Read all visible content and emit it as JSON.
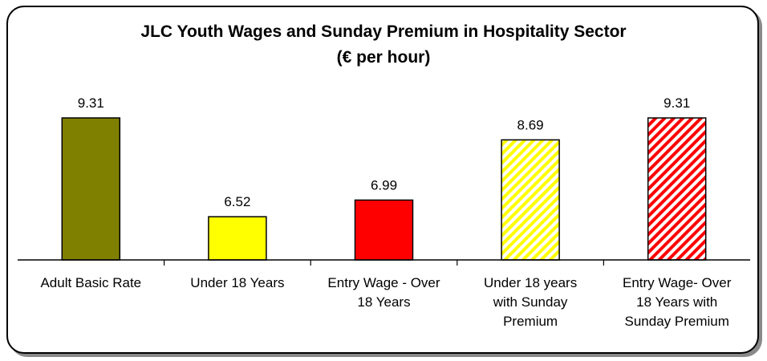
{
  "chart_data": {
    "type": "bar",
    "title": "JLC Youth Wages and Sunday Premium in Hospitality Sector",
    "subtitle": "(€ per hour)",
    "categories": [
      [
        "Adult Basic Rate"
      ],
      [
        "Under 18 Years"
      ],
      [
        "Entry Wage - Over",
        "18 Years"
      ],
      [
        "Under 18 years",
        "with Sunday",
        "Premium"
      ],
      [
        "Entry Wage- Over",
        "18 Years with",
        "Sunday Premium"
      ]
    ],
    "values": [
      9.31,
      6.52,
      6.99,
      8.69,
      9.31
    ],
    "value_labels": [
      "9.31",
      "6.52",
      "6.99",
      "8.69",
      "9.31"
    ],
    "bar_styles": [
      {
        "fill": "#808000",
        "pattern": "solid"
      },
      {
        "fill": "#ffff00",
        "pattern": "solid"
      },
      {
        "fill": "#ff0000",
        "pattern": "solid"
      },
      {
        "fill": "#ffff00",
        "pattern": "diagonal-stripes"
      },
      {
        "fill": "#ff0000",
        "pattern": "diagonal-stripes"
      }
    ],
    "ylim": [
      5.3,
      9.31
    ],
    "legend": "none",
    "grid": false
  }
}
